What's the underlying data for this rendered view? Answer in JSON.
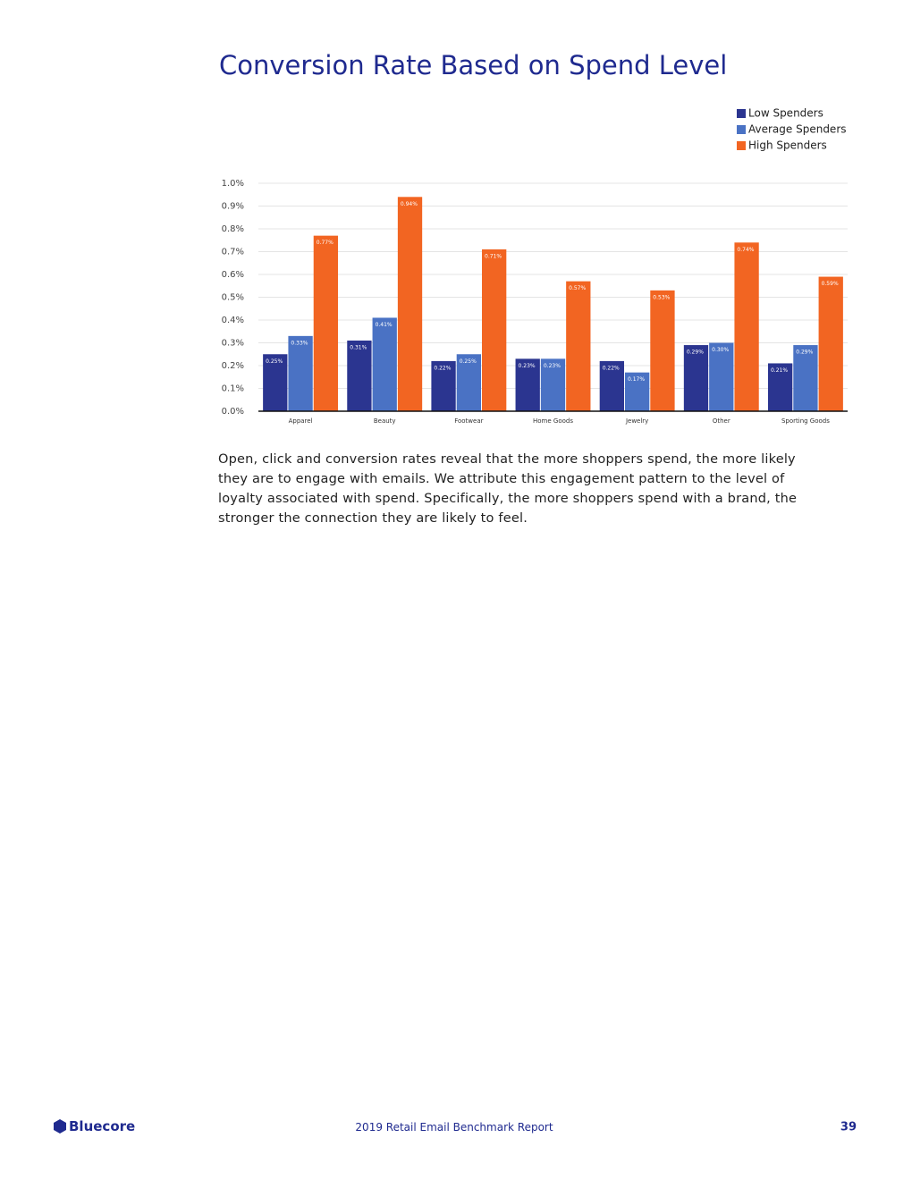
{
  "chart_data": {
    "type": "bar",
    "title": "Conversion Rate Based on Spend Level",
    "categories": [
      "Apparel",
      "Beauty",
      "Footwear",
      "Home Goods",
      "Jewelry",
      "Other",
      "Sporting Goods"
    ],
    "series": [
      {
        "name": "Low Spenders",
        "color": "#2b3590",
        "values": [
          0.25,
          0.31,
          0.22,
          0.23,
          0.22,
          0.29,
          0.21
        ],
        "value_labels": [
          "0.25%",
          "0.31%",
          "0.22%",
          "0.23%",
          "0.22%",
          "0.29%",
          "0.21%"
        ]
      },
      {
        "name": "Average Spenders",
        "color": "#4a72c4",
        "values": [
          0.33,
          0.41,
          0.25,
          0.23,
          0.17,
          0.3,
          0.29
        ],
        "value_labels": [
          "0.33%",
          "0.41%",
          "0.25%",
          "0.23%",
          "0.17%",
          "0.30%",
          "0.29%"
        ]
      },
      {
        "name": "High Spenders",
        "color": "#f26522",
        "values": [
          0.77,
          0.94,
          0.71,
          0.57,
          0.53,
          0.74,
          0.59
        ],
        "value_labels": [
          "0.77%",
          "0.94%",
          "0.71%",
          "0.57%",
          "0.53%",
          "0.74%",
          "0.59%"
        ]
      }
    ],
    "ylim": [
      0,
      1.0
    ],
    "yticks": [
      {
        "value": 0,
        "label": "0.0%"
      },
      {
        "value": 0.1,
        "label": "0.1%"
      },
      {
        "value": 0.2,
        "label": "0.2%"
      },
      {
        "value": 0.3,
        "label": "0.3%"
      },
      {
        "value": 0.4,
        "label": "0.4%"
      },
      {
        "value": 0.5,
        "label": "0.5%"
      },
      {
        "value": 0.6,
        "label": "0.6%"
      },
      {
        "value": 0.7,
        "label": "0.7%"
      },
      {
        "value": 0.8,
        "label": "0.8%"
      },
      {
        "value": 0.9,
        "label": "0.9%"
      },
      {
        "value": 1.0,
        "label": "1.0%"
      }
    ],
    "grid": true,
    "legend": "top-right"
  },
  "body": {
    "paragraph": "Open, click and conversion rates reveal that the more shoppers spend, the more likely they are to engage with emails. We attribute this engagement pattern to the level of loyalty associated with spend. Specifically, the more shoppers spend with a brand, the stronger the connection they are likely to feel."
  },
  "footer": {
    "logo": "Bluecore",
    "report": "2019 Retail Email Benchmark Report",
    "page": "39"
  }
}
